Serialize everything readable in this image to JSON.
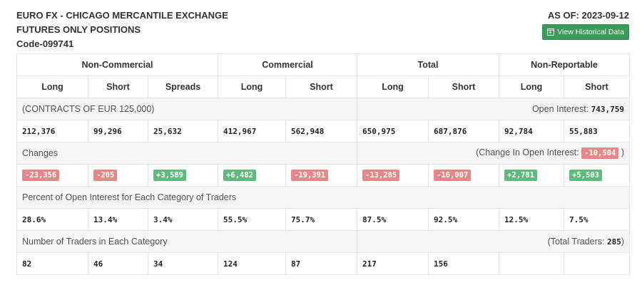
{
  "header": {
    "title_line1": "EURO FX - CHICAGO MERCANTILE EXCHANGE",
    "title_line2": "FUTURES ONLY POSITIONS",
    "code": "Code-099741",
    "as_of": "AS OF: 2023-09-12",
    "history_button": "View Historical Data"
  },
  "groups": [
    "Non-Commercial",
    "Commercial",
    "Total",
    "Non-Reportable"
  ],
  "columns": [
    "Long",
    "Short",
    "Spreads",
    "Long",
    "Short",
    "Long",
    "Short",
    "Long",
    "Short"
  ],
  "contracts": {
    "label": "(CONTRACTS OF EUR 125,000)",
    "oi_label": "Open Interest: ",
    "oi_value": "743,759",
    "values": [
      "212,376",
      "99,296",
      "25,632",
      "412,967",
      "562,948",
      "650,975",
      "687,876",
      "92,784",
      "55,883"
    ]
  },
  "changes": {
    "label": "Changes",
    "oi_prefix": "(Change In Open Interest: ",
    "oi_value": "-10,504",
    "oi_suffix": " )",
    "values": [
      "-23,356",
      "-205",
      "+3,589",
      "+6,482",
      "-19,391",
      "-13,285",
      "-16,007",
      "+2,781",
      "+5,503"
    ],
    "colors": {
      "negative": "#e88787",
      "positive": "#5fba7d"
    }
  },
  "percent": {
    "label": "Percent of Open Interest for Each Category of Traders",
    "values": [
      "28.6%",
      "13.4%",
      "3.4%",
      "55.5%",
      "75.7%",
      "87.5%",
      "92.5%",
      "12.5%",
      "7.5%"
    ]
  },
  "traders": {
    "label": "Number of Traders in Each Category",
    "total_prefix": "(Total Traders: ",
    "total_value": "285",
    "total_suffix": ")",
    "values": [
      "82",
      "46",
      "34",
      "124",
      "87",
      "217",
      "156",
      "",
      ""
    ]
  },
  "colors": {
    "button_bg": "#3d9a5a",
    "section_bg": "#f5f5f5",
    "border": "#e3e3e3"
  },
  "icons": {
    "history_button": "calendar-plus-icon"
  }
}
